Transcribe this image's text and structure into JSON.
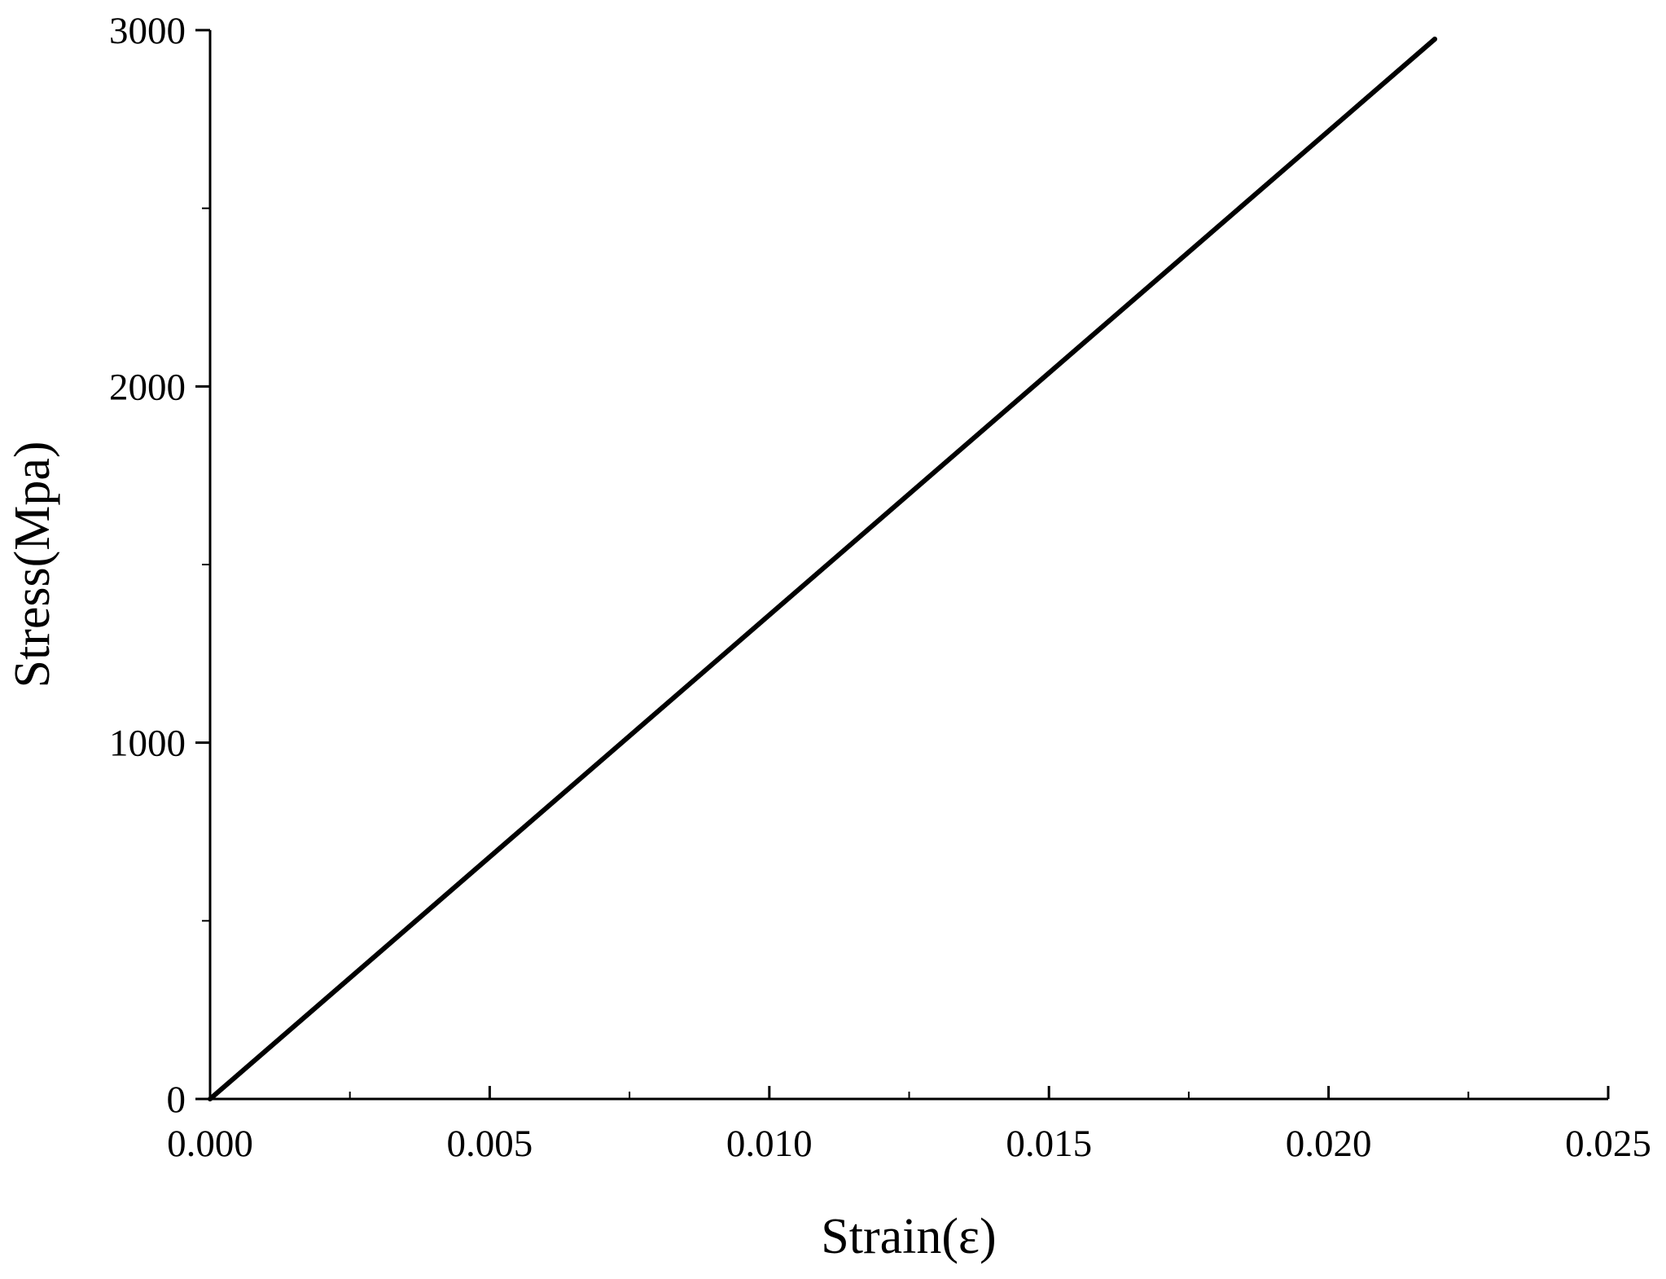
{
  "chart_data": {
    "type": "line",
    "xlabel": "Strain(ε)",
    "ylabel": "Stress(Mpa)",
    "x": [
      0,
      0.0219
    ],
    "series": [
      {
        "color": "#000000",
        "values": [
          0,
          2975
        ]
      }
    ],
    "xlim": [
      0,
      0.025
    ],
    "ylim": [
      0,
      3000
    ],
    "xticks": [
      {
        "value": 0,
        "label": "0.000"
      },
      {
        "value": 0.005,
        "label": "0.005"
      },
      {
        "value": 0.01,
        "label": "0.010"
      },
      {
        "value": 0.015,
        "label": "0.015"
      },
      {
        "value": 0.02,
        "label": "0.020"
      },
      {
        "value": 0.025,
        "label": "0.025"
      }
    ],
    "yticks": [
      0,
      1000,
      2000,
      3000
    ],
    "grid": false
  }
}
